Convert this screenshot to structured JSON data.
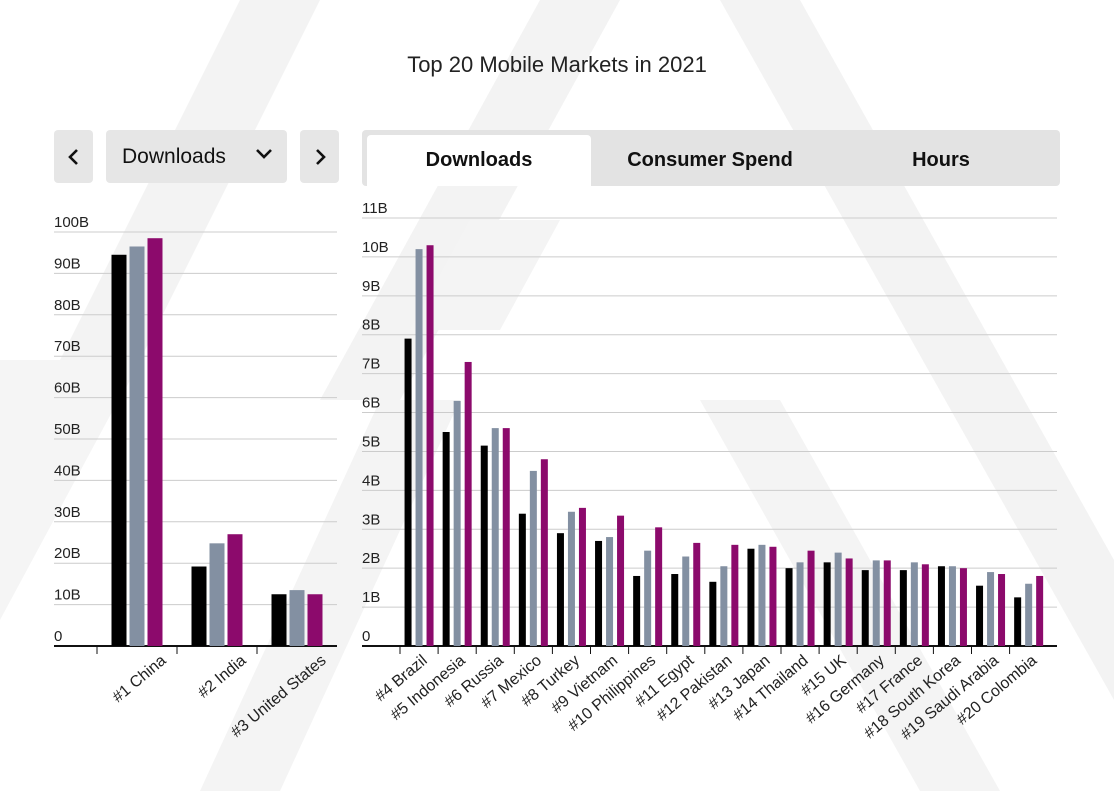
{
  "title": "Top 20 Mobile Markets in 2021",
  "controls": {
    "prev_icon": "chevron-left-icon",
    "next_icon": "chevron-right-icon",
    "dropdown_icon": "chevron-down-icon",
    "selected_metric": "Downloads"
  },
  "tabs": [
    {
      "label": "Downloads",
      "active": true
    },
    {
      "label": "Consumer Spend",
      "active": false
    },
    {
      "label": "Hours",
      "active": false
    }
  ],
  "colors": {
    "series1": "#000000",
    "series2": "#8390a2",
    "series3": "#8c0a6c",
    "grid": "#cccccc"
  },
  "chart_data": [
    {
      "type": "bar",
      "categories": [
        "#1 China",
        "#2 India",
        "#3 United States"
      ],
      "yticks": [
        "0",
        "10B",
        "20B",
        "30B",
        "40B",
        "50B",
        "60B",
        "70B",
        "80B",
        "90B",
        "100B"
      ],
      "ylim": [
        0,
        100
      ],
      "grid": true,
      "series": [
        {
          "values": [
            94.5,
            19.2,
            12.5
          ]
        },
        {
          "values": [
            96.5,
            24.8,
            13.5
          ]
        },
        {
          "values": [
            98.5,
            27.0,
            12.5
          ]
        }
      ]
    },
    {
      "type": "bar",
      "categories": [
        "#4 Brazil",
        "#5 Indonesia",
        "#6 Russia",
        "#7 Mexico",
        "#8 Turkey",
        "#9 Vietnam",
        "#10 Philippines",
        "#11 Egypt",
        "#12 Pakistan",
        "#13 Japan",
        "#14 Thailand",
        "#15 UK",
        "#16 Germany",
        "#17 France",
        "#18 South Korea",
        "#19 Saudi Arabia",
        "#20 Colombia"
      ],
      "yticks": [
        "0",
        "1B",
        "2B",
        "3B",
        "4B",
        "5B",
        "6B",
        "7B",
        "8B",
        "9B",
        "10B",
        "11B"
      ],
      "ylim": [
        0,
        11
      ],
      "grid": true,
      "series": [
        {
          "values": [
            7.9,
            5.5,
            5.15,
            3.4,
            2.9,
            2.7,
            1.8,
            1.85,
            1.65,
            2.5,
            2.0,
            2.15,
            1.95,
            1.95,
            2.05,
            1.55,
            1.25
          ]
        },
        {
          "values": [
            10.2,
            6.3,
            5.6,
            4.5,
            3.45,
            2.8,
            2.45,
            2.3,
            2.05,
            2.6,
            2.15,
            2.4,
            2.2,
            2.15,
            2.05,
            1.9,
            1.6
          ]
        },
        {
          "values": [
            10.3,
            7.3,
            5.6,
            4.8,
            3.55,
            3.35,
            3.05,
            2.65,
            2.6,
            2.55,
            2.45,
            2.25,
            2.2,
            2.1,
            2.0,
            1.85,
            1.8
          ]
        }
      ]
    }
  ]
}
